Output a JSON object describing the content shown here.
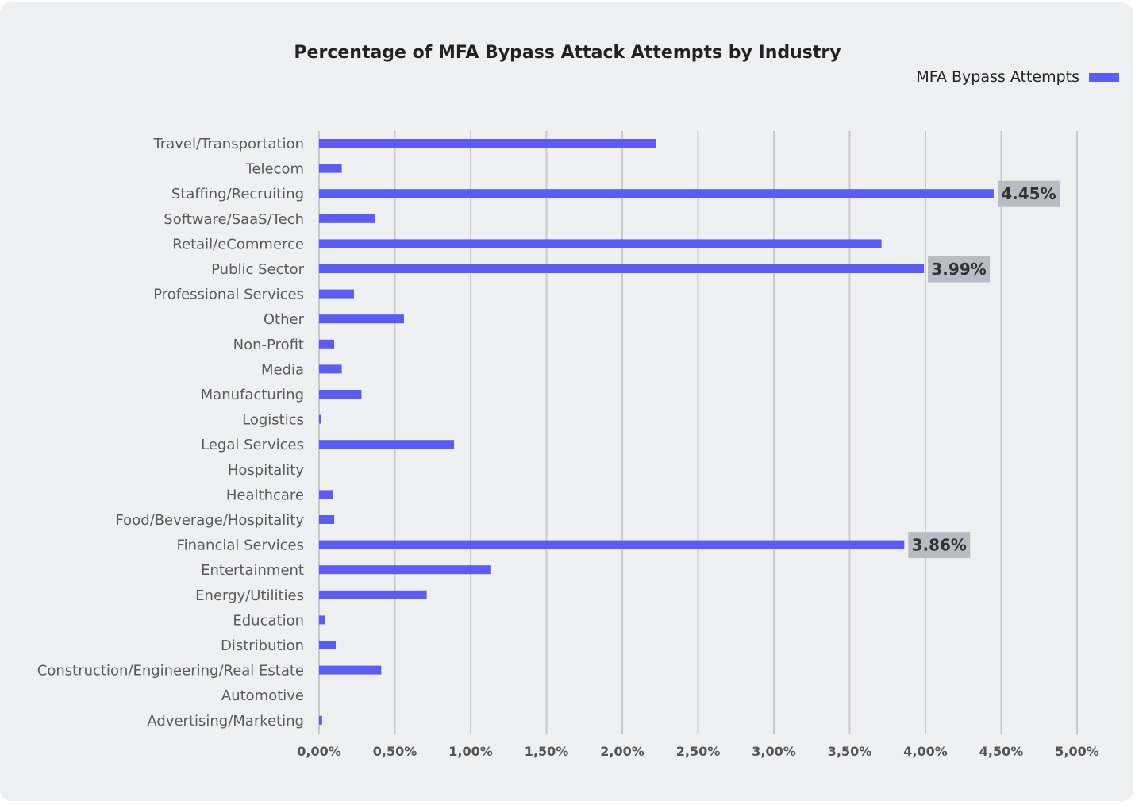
{
  "chart_data": {
    "type": "bar",
    "orientation": "horizontal",
    "title": "Percentage of MFA Bypass Attack Attempts by Industry",
    "categories": [
      "Travel/Transportation",
      "Telecom",
      "Staffing/Recruiting",
      "Software/SaaS/Tech",
      "Retail/eCommerce",
      "Public Sector",
      "Professional Services",
      "Other",
      "Non-Profit",
      "Media",
      "Manufacturing",
      "Logistics",
      "Legal Services",
      "Hospitality",
      "Healthcare",
      "Food/Beverage/Hospitality",
      "Financial Services",
      "Entertainment",
      "Energy/Utilities",
      "Education",
      "Distribution",
      "Construction/Engineering/Real Estate",
      "Automotive",
      "Advertising/Marketing"
    ],
    "series": [
      {
        "name": "MFA Bypass Attempts",
        "color": "#5b5bf5",
        "values": [
          2.22,
          0.15,
          4.45,
          0.37,
          3.71,
          3.99,
          0.23,
          0.56,
          0.1,
          0.15,
          0.28,
          0.01,
          0.89,
          0.0,
          0.09,
          0.1,
          3.86,
          1.13,
          0.71,
          0.04,
          0.11,
          0.41,
          0.0,
          0.02
        ]
      }
    ],
    "data_labels": [
      {
        "category": "Staffing/Recruiting",
        "text": "4.45%"
      },
      {
        "category": "Public Sector",
        "text": "3.99%"
      },
      {
        "category": "Financial Services",
        "text": "3.86%"
      }
    ],
    "xlim": [
      0,
      5
    ],
    "xticks": [
      0,
      0.5,
      1.0,
      1.5,
      2.0,
      2.5,
      3.0,
      3.5,
      4.0,
      4.5,
      5.0
    ],
    "xtick_labels": [
      "0,00%",
      "0,50%",
      "1,00%",
      "1,50%",
      "2,00%",
      "2,50%",
      "3,00%",
      "3,50%",
      "4,00%",
      "4,50%",
      "5,00%"
    ],
    "grid": "vertical",
    "legend_position": "top-right",
    "xlabel": "",
    "ylabel": ""
  }
}
